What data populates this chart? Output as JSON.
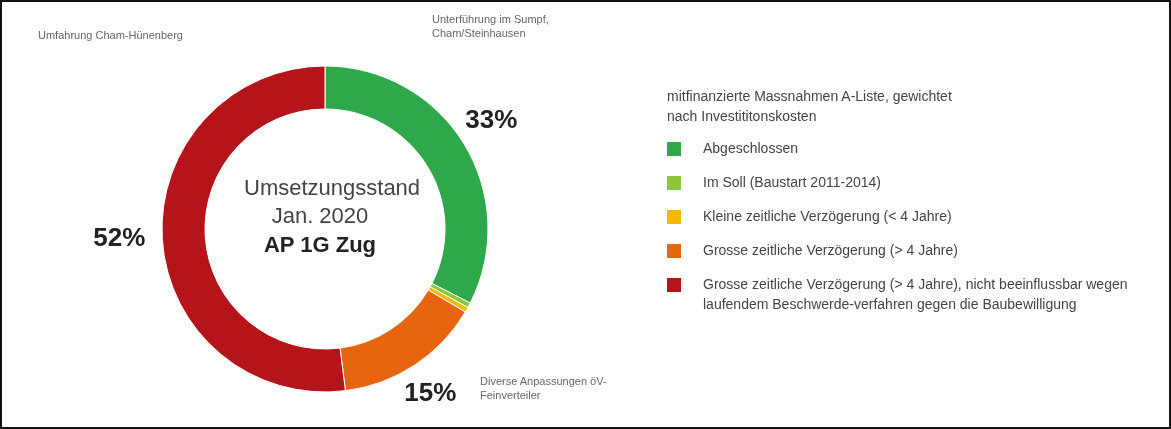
{
  "chart_data": {
    "type": "donut",
    "title": "Umsetzungsstand Jan. 2020",
    "subtitle": "AP 1G Zug",
    "legend_title": "mitfinanzierte Massnahmen A-Liste, gewichtet nach Investititonskosten",
    "categories": [
      "Abgeschlossen",
      "Im Soll (Baustart 2011-2014)",
      "Kleine zeitliche Verzögerung (< 4 Jahre)",
      "Grosse zeitliche Verzögerung (> 4 Jahre)",
      "Grosse zeitliche Verzögerung (> 4 Jahre), nicht beeinflussbar wegen laufendem Beschwerde-verfahren gegen die Baubewilligung"
    ],
    "values": [
      32.5,
      0.5,
      0.5,
      14.5,
      52
    ],
    "colors": [
      "#2ea84a",
      "#8cc63f",
      "#f5b800",
      "#e8650f",
      "#b5141b"
    ],
    "value_labels": [
      "33%",
      null,
      null,
      "15%",
      "52%"
    ],
    "annotations": [
      "Unterführung im Sumpf, Cham/Steinhausen",
      "Diverse Anpassungen öV-Feinverteiler",
      "Umfahrung Cham-Hünenberg"
    ],
    "legend": "right"
  }
}
